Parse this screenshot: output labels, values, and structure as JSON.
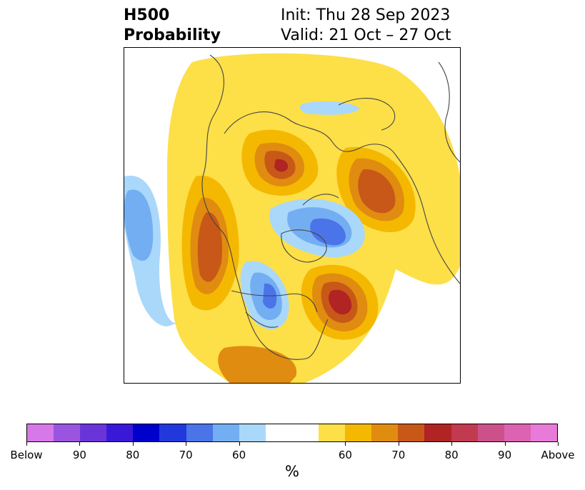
{
  "title": {
    "left_line1": "H500",
    "left_line2": "Probability",
    "init": "Init: Thu 28 Sep 2023",
    "valid": "Valid: 21 Oct – 27 Oct"
  },
  "colorbar": {
    "colors": [
      "#d778e8",
      "#9a55e0",
      "#6a35d8",
      "#3a18d8",
      "#0000cc",
      "#2238dc",
      "#4a74e8",
      "#74aef2",
      "#aad8fa",
      "#ffffff",
      "#ffffff",
      "#fddf48",
      "#f5b800",
      "#e08c10",
      "#c85818",
      "#b02424",
      "#c23a50",
      "#cc508a",
      "#dc62b2",
      "#e87ad8"
    ],
    "tick_labels": [
      "Below",
      "90",
      "80",
      "70",
      "60",
      "60",
      "70",
      "80",
      "90",
      "Above"
    ],
    "unit": "%"
  }
}
